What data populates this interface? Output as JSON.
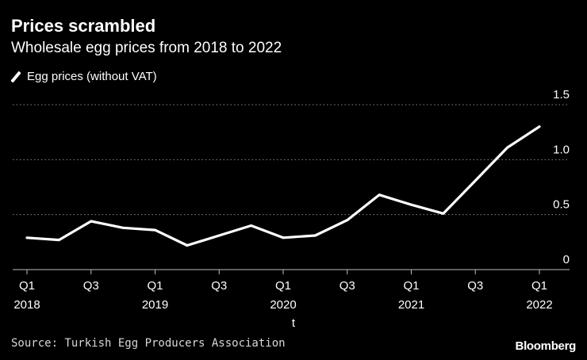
{
  "header": {
    "title": "Prices scrambled",
    "subtitle": "Wholesale egg prices from 2018 to 2022"
  },
  "legend": {
    "label": "Egg prices (without VAT)"
  },
  "footer": {
    "source": "Source: Turkish Egg Producers Association",
    "brand": "Bloomberg"
  },
  "colors": {
    "background": "#000000",
    "line": "#ffffff",
    "grid": "#8a8a8a",
    "text": "#ffffff"
  },
  "chart_data": {
    "type": "line",
    "title": "Prices scrambled",
    "subtitle": "Wholesale egg prices from 2018 to 2022",
    "xlabel": "t",
    "ylabel": "",
    "ylim": [
      0,
      1.5
    ],
    "yticks": [
      "0",
      "0.5",
      "1.0",
      "1.5"
    ],
    "yaxis_position": "right",
    "grid": true,
    "legend_position": "top-left",
    "x": [
      "2018-Q1",
      "2018-Q2",
      "2018-Q3",
      "2018-Q4",
      "2019-Q1",
      "2019-Q2",
      "2019-Q3",
      "2019-Q4",
      "2020-Q1",
      "2020-Q2",
      "2020-Q3",
      "2020-Q4",
      "2021-Q1",
      "2021-Q2",
      "2021-Q3",
      "2021-Q4",
      "2022-Q1"
    ],
    "xticks": [
      {
        "x": "2018-Q1",
        "label": "Q1",
        "year": "2018"
      },
      {
        "x": "2018-Q3",
        "label": "Q3",
        "year": ""
      },
      {
        "x": "2019-Q1",
        "label": "Q1",
        "year": "2019"
      },
      {
        "x": "2019-Q3",
        "label": "Q3",
        "year": ""
      },
      {
        "x": "2020-Q1",
        "label": "Q1",
        "year": "2020"
      },
      {
        "x": "2020-Q3",
        "label": "Q3",
        "year": ""
      },
      {
        "x": "2021-Q1",
        "label": "Q1",
        "year": "2021"
      },
      {
        "x": "2021-Q3",
        "label": "Q3",
        "year": ""
      },
      {
        "x": "2022-Q1",
        "label": "Q1",
        "year": "2022"
      }
    ],
    "series": [
      {
        "name": "Egg prices (without VAT)",
        "values": [
          0.29,
          0.27,
          0.44,
          0.38,
          0.36,
          0.22,
          0.31,
          0.4,
          0.29,
          0.31,
          0.45,
          0.68,
          0.59,
          0.51,
          0.81,
          1.11,
          1.3
        ]
      }
    ]
  }
}
